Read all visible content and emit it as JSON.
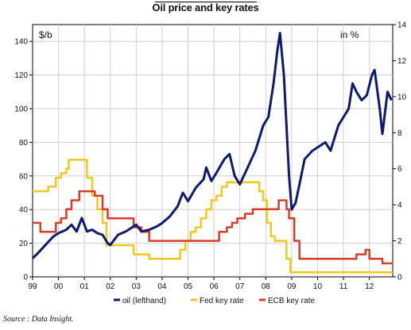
{
  "chart_data": {
    "type": "line",
    "title": "Oil price and key rates",
    "left_axis_unit": "$/b",
    "right_axis_unit": "in %",
    "y_left": {
      "min": 0,
      "max": 150,
      "ticks": [
        0,
        20,
        40,
        60,
        80,
        100,
        120,
        140
      ]
    },
    "y_right": {
      "min": 0,
      "max": 14,
      "ticks": [
        0,
        2,
        4,
        6,
        8,
        10,
        12,
        14
      ]
    },
    "x_axis": {
      "min": 1999,
      "max": 2012.9,
      "tick_labels": [
        "99",
        "00",
        "01",
        "02",
        "03",
        "04",
        "05",
        "06",
        "07",
        "08",
        "09",
        "10",
        "11",
        "12"
      ]
    },
    "grid": true,
    "legend": {
      "position": "bottom",
      "items": [
        "oil (lefthand)",
        "Fed key rate",
        "ECB key rate"
      ]
    },
    "series": [
      {
        "name": "oil (lefthand)",
        "axis": "left",
        "color": "#0d1a6e",
        "x": [
          1999.0,
          1999.2,
          1999.5,
          1999.8,
          2000.0,
          2000.3,
          2000.5,
          2000.7,
          2000.9,
          2001.1,
          2001.3,
          2001.5,
          2001.7,
          2001.9,
          2002.0,
          2002.3,
          2002.6,
          2002.9,
          2003.0,
          2003.2,
          2003.5,
          2003.8,
          2004.0,
          2004.3,
          2004.6,
          2004.8,
          2005.0,
          2005.3,
          2005.6,
          2005.7,
          2005.9,
          2006.1,
          2006.4,
          2006.6,
          2006.8,
          2007.0,
          2007.3,
          2007.6,
          2007.9,
          2008.1,
          2008.3,
          2008.45,
          2008.55,
          2008.7,
          2008.9,
          2009.0,
          2009.15,
          2009.3,
          2009.5,
          2009.8,
          2010.0,
          2010.3,
          2010.5,
          2010.8,
          2011.0,
          2011.2,
          2011.35,
          2011.5,
          2011.7,
          2011.9,
          2012.1,
          2012.2,
          2012.4,
          2012.5,
          2012.7,
          2012.85
        ],
        "values": [
          11,
          14,
          19,
          24,
          26,
          28,
          31,
          27,
          35,
          27,
          28,
          26,
          25,
          20,
          19,
          25,
          27,
          30,
          31,
          27,
          28,
          30,
          32,
          36,
          42,
          50,
          45,
          53,
          58,
          65,
          57,
          62,
          70,
          73,
          60,
          55,
          65,
          75,
          90,
          95,
          115,
          135,
          145,
          120,
          60,
          40,
          44,
          55,
          70,
          75,
          77,
          80,
          75,
          90,
          95,
          100,
          115,
          110,
          105,
          108,
          120,
          123,
          100,
          85,
          110,
          105
        ]
      },
      {
        "name": "Fed key rate",
        "axis": "right",
        "color": "#f2c81a",
        "x": [
          1999.0,
          1999.4,
          1999.6,
          1999.9,
          2000.1,
          2000.3,
          2000.4,
          2001.0,
          2001.1,
          2001.3,
          2001.5,
          2001.7,
          2001.85,
          2002.9,
          2003.5,
          2004.5,
          2004.7,
          2004.9,
          2005.1,
          2005.3,
          2005.5,
          2005.7,
          2005.9,
          2006.1,
          2006.3,
          2006.5,
          2007.6,
          2007.75,
          2007.9,
          2008.05,
          2008.2,
          2008.35,
          2008.8,
          2008.95,
          2012.9
        ],
        "values": [
          4.75,
          4.75,
          5.0,
          5.5,
          5.75,
          6.0,
          6.5,
          6.5,
          5.5,
          4.5,
          3.75,
          3.0,
          1.75,
          1.25,
          1.0,
          1.0,
          1.5,
          2.0,
          2.5,
          2.75,
          3.25,
          3.75,
          4.25,
          4.5,
          5.0,
          5.25,
          5.25,
          4.75,
          4.25,
          3.0,
          2.25,
          2.0,
          1.0,
          0.25,
          0.25
        ]
      },
      {
        "name": "ECB key rate",
        "axis": "right",
        "color": "#d63c2a",
        "x": [
          1999.0,
          1999.3,
          1999.9,
          2000.1,
          2000.3,
          2000.5,
          2000.8,
          2001.4,
          2001.7,
          2001.9,
          2002.9,
          2003.2,
          2003.5,
          2005.9,
          2006.2,
          2006.5,
          2006.7,
          2006.9,
          2007.2,
          2007.5,
          2008.5,
          2008.8,
          2008.9,
          2009.1,
          2009.3,
          2011.3,
          2011.5,
          2011.85,
          2012.0,
          2012.5,
          2012.9
        ],
        "values": [
          3.0,
          2.5,
          3.0,
          3.25,
          3.75,
          4.25,
          4.75,
          4.5,
          3.75,
          3.25,
          2.75,
          2.5,
          2.0,
          2.0,
          2.5,
          2.75,
          3.0,
          3.25,
          3.5,
          3.75,
          4.25,
          3.75,
          3.25,
          2.0,
          1.0,
          1.0,
          1.25,
          1.5,
          1.0,
          0.75,
          0.75
        ]
      }
    ]
  },
  "source": "Source : Data Insight."
}
